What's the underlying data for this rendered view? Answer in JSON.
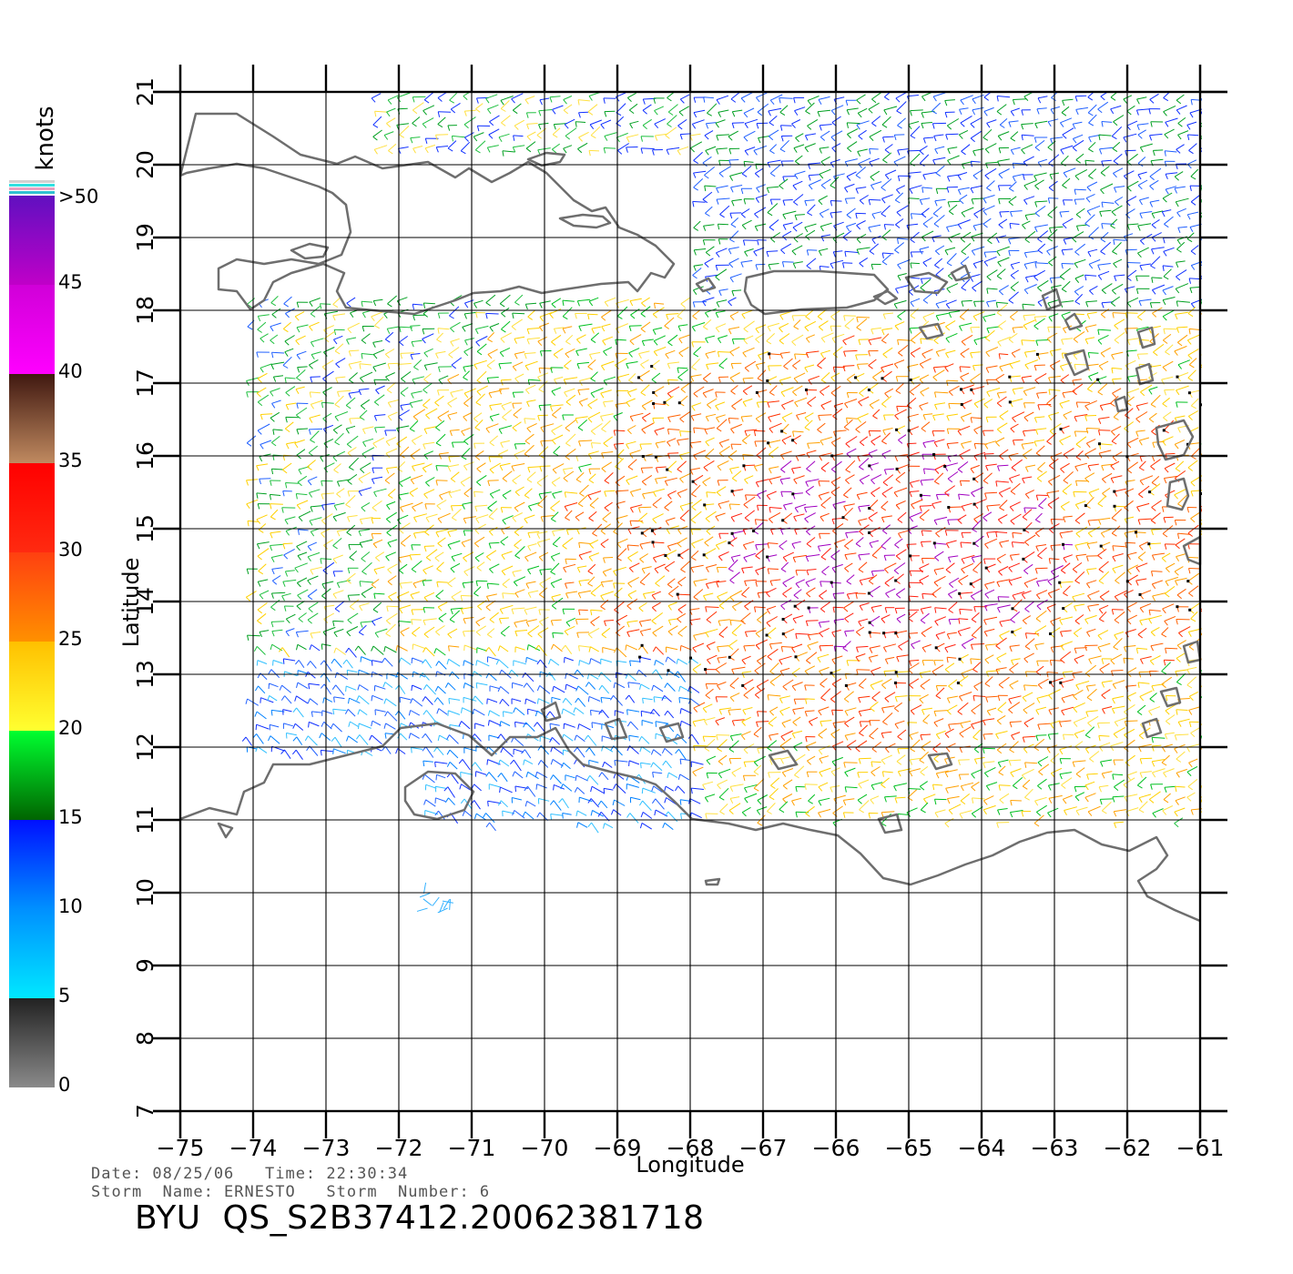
{
  "map": {
    "x_label": "Longitude",
    "y_label": "Latitude",
    "lon_ticks": [
      "-75",
      "-74",
      "-73",
      "-72",
      "-71",
      "-70",
      "-69",
      "-68",
      "-67",
      "-66",
      "-65",
      "-64",
      "-63",
      "-62",
      "-61"
    ],
    "lat_ticks": [
      "7",
      "8",
      "9",
      "10",
      "11",
      "12",
      "13",
      "14",
      "15",
      "16",
      "17",
      "18",
      "19",
      "20",
      "21"
    ],
    "lon_range": [
      -75,
      -61
    ],
    "lat_range": [
      7,
      21
    ],
    "grid": true,
    "coastline_color": "#6e6e6e"
  },
  "legend": {
    "unit": "knots",
    "labels": [
      "0",
      "5",
      "10",
      "15",
      "20",
      "25",
      "30",
      "35",
      "40",
      "45",
      ">50"
    ],
    "bands": [
      {
        "from": 0,
        "to": 5,
        "colors": [
          "#8a8a8a",
          "#222222"
        ]
      },
      {
        "from": 5,
        "to": 10,
        "colors": [
          "#00e8ff",
          "#0090ff"
        ]
      },
      {
        "from": 10,
        "to": 15,
        "colors": [
          "#0090ff",
          "#0010ff"
        ]
      },
      {
        "from": 15,
        "to": 20,
        "colors": [
          "#006400",
          "#00ff30"
        ]
      },
      {
        "from": 20,
        "to": 25,
        "colors": [
          "#ffff30",
          "#ffc000"
        ]
      },
      {
        "from": 25,
        "to": 30,
        "colors": [
          "#ff9000",
          "#ff4010"
        ]
      },
      {
        "from": 30,
        "to": 35,
        "colors": [
          "#ff2a10",
          "#ff0000"
        ]
      },
      {
        "from": 35,
        "to": 40,
        "colors": [
          "#c08a60",
          "#401810"
        ]
      },
      {
        "from": 40,
        "to": 45,
        "colors": [
          "#ff00ff",
          "#d000d8"
        ]
      },
      {
        "from": 45,
        "to": 50,
        "colors": [
          "#c000c8",
          "#6010c0"
        ]
      }
    ]
  },
  "info": {
    "date_line": "Date: 08/25/06   Time: 22:30:34",
    "storm_line": "Storm  Name: ERNESTO   Storm  Number: 6",
    "title": "BYU  QS_S2B37412.20062381718"
  }
}
